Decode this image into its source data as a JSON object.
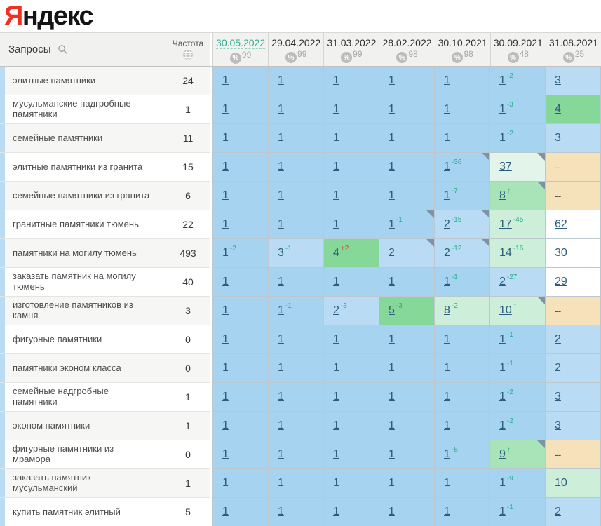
{
  "logo": {
    "part1": "Я",
    "part2": "ндекс"
  },
  "header": {
    "queries_label": "Запросы",
    "frequency_label": "Частота",
    "dates": [
      {
        "label": "30.05.2022",
        "pct": "99",
        "active": true
      },
      {
        "label": "29.04.2022",
        "pct": "99",
        "active": false
      },
      {
        "label": "31.03.2022",
        "pct": "99",
        "active": false
      },
      {
        "label": "28.02.2022",
        "pct": "98",
        "active": false
      },
      {
        "label": "30.10.2021",
        "pct": "98",
        "active": false
      },
      {
        "label": "30.09.2021",
        "pct": "48",
        "active": false
      },
      {
        "label": "31.08.2021",
        "pct": "25",
        "active": false
      }
    ]
  },
  "palette": {
    "b1": "#a6d3ef",
    "b2": "#b9dcf4",
    "g1": "#85d898",
    "g1b": "#a9e4b9",
    "g2": "#cdeed9",
    "g3": "#e3f5ea",
    "be": "#f5e2ba",
    "wh": "#ffffff",
    "accent_teal": "#2fae93",
    "delta_up": "#27ae8d",
    "delta_down": "#cc4633",
    "link": "#2c5d7c",
    "stripe": "#b9dcf2",
    "logo_red": "#ef3124"
  },
  "rows": [
    {
      "query": "элитные памятники",
      "freq": "24",
      "cells": [
        {
          "v": "1",
          "bg": "b1"
        },
        {
          "v": "1",
          "bg": "b1"
        },
        {
          "v": "1",
          "bg": "b1"
        },
        {
          "v": "1",
          "bg": "b1"
        },
        {
          "v": "1",
          "bg": "b1"
        },
        {
          "v": "1",
          "d": "-2",
          "bg": "b1"
        },
        {
          "v": "3",
          "bg": "b2"
        }
      ]
    },
    {
      "query": "мусульманские надгробные памятники",
      "freq": "1",
      "cells": [
        {
          "v": "1",
          "bg": "b1"
        },
        {
          "v": "1",
          "bg": "b1"
        },
        {
          "v": "1",
          "bg": "b1"
        },
        {
          "v": "1",
          "bg": "b1"
        },
        {
          "v": "1",
          "bg": "b1"
        },
        {
          "v": "1",
          "d": "-3",
          "bg": "b1"
        },
        {
          "v": "4",
          "bg": "g1"
        }
      ]
    },
    {
      "query": "семейные памятники",
      "freq": "11",
      "cells": [
        {
          "v": "1",
          "bg": "b1"
        },
        {
          "v": "1",
          "bg": "b1"
        },
        {
          "v": "1",
          "bg": "b1"
        },
        {
          "v": "1",
          "bg": "b1"
        },
        {
          "v": "1",
          "bg": "b1"
        },
        {
          "v": "1",
          "d": "-2",
          "bg": "b1"
        },
        {
          "v": "3",
          "bg": "b2"
        }
      ]
    },
    {
      "query": "элитные памятники из гранита",
      "freq": "15",
      "cells": [
        {
          "v": "1",
          "bg": "b1"
        },
        {
          "v": "1",
          "bg": "b1"
        },
        {
          "v": "1",
          "bg": "b1"
        },
        {
          "v": "1",
          "bg": "b1"
        },
        {
          "v": "1",
          "d": "-36",
          "bg": "b1",
          "c": true
        },
        {
          "v": "37",
          "d": "↑",
          "bg": "g3",
          "c": true
        },
        {
          "v": "--",
          "bg": "be"
        }
      ]
    },
    {
      "query": "семейные памятники из гранита",
      "freq": "6",
      "cells": [
        {
          "v": "1",
          "bg": "b1"
        },
        {
          "v": "1",
          "bg": "b1"
        },
        {
          "v": "1",
          "bg": "b1"
        },
        {
          "v": "1",
          "bg": "b1"
        },
        {
          "v": "1",
          "d": "-7",
          "bg": "b1"
        },
        {
          "v": "8",
          "d": "↑",
          "bg": "g1b",
          "c": true
        },
        {
          "v": "--",
          "bg": "be"
        }
      ]
    },
    {
      "query": "гранитные памятники тюмень",
      "freq": "22",
      "cells": [
        {
          "v": "1",
          "bg": "b1"
        },
        {
          "v": "1",
          "bg": "b1"
        },
        {
          "v": "1",
          "bg": "b1"
        },
        {
          "v": "1",
          "d": "-1",
          "bg": "b1",
          "c": true
        },
        {
          "v": "2",
          "d": "-15",
          "bg": "b2",
          "c": true
        },
        {
          "v": "17",
          "d": "-45",
          "bg": "g2"
        },
        {
          "v": "62",
          "bg": "wh"
        }
      ]
    },
    {
      "query": "памятники на могилу тюмень",
      "freq": "493",
      "cells": [
        {
          "v": "1",
          "d": "-2",
          "bg": "b1"
        },
        {
          "v": "3",
          "d": "-1",
          "bg": "b2"
        },
        {
          "v": "4",
          "d": "+2",
          "dc": "r",
          "bg": "g1"
        },
        {
          "v": "2",
          "bg": "b2",
          "c": true
        },
        {
          "v": "2",
          "d": "-12",
          "bg": "b2",
          "c": true
        },
        {
          "v": "14",
          "d": "-16",
          "bg": "g2"
        },
        {
          "v": "30",
          "bg": "wh"
        }
      ]
    },
    {
      "query": "заказать памятник на могилу тюмень",
      "freq": "40",
      "cells": [
        {
          "v": "1",
          "bg": "b1"
        },
        {
          "v": "1",
          "bg": "b1"
        },
        {
          "v": "1",
          "bg": "b1"
        },
        {
          "v": "1",
          "bg": "b1"
        },
        {
          "v": "1",
          "d": "-1",
          "bg": "b1"
        },
        {
          "v": "2",
          "d": "-27",
          "bg": "b2"
        },
        {
          "v": "29",
          "bg": "wh"
        }
      ]
    },
    {
      "query": "изготовление памятников из камня",
      "freq": "3",
      "cells": [
        {
          "v": "1",
          "bg": "b1"
        },
        {
          "v": "1",
          "d": "-1",
          "bg": "b1"
        },
        {
          "v": "2",
          "d": "-3",
          "bg": "b2"
        },
        {
          "v": "5",
          "d": "-3",
          "bg": "g1"
        },
        {
          "v": "8",
          "d": "-2",
          "bg": "g2"
        },
        {
          "v": "10",
          "d": "↑",
          "bg": "g2",
          "c": true
        },
        {
          "v": "--",
          "bg": "be"
        }
      ]
    },
    {
      "query": "фигурные памятники",
      "freq": "0",
      "cells": [
        {
          "v": "1",
          "bg": "b1"
        },
        {
          "v": "1",
          "bg": "b1"
        },
        {
          "v": "1",
          "bg": "b1"
        },
        {
          "v": "1",
          "bg": "b1"
        },
        {
          "v": "1",
          "bg": "b1"
        },
        {
          "v": "1",
          "d": "-1",
          "bg": "b1"
        },
        {
          "v": "2",
          "bg": "b2"
        }
      ]
    },
    {
      "query": "памятники эконом класса",
      "freq": "0",
      "cells": [
        {
          "v": "1",
          "bg": "b1"
        },
        {
          "v": "1",
          "bg": "b1"
        },
        {
          "v": "1",
          "bg": "b1"
        },
        {
          "v": "1",
          "bg": "b1"
        },
        {
          "v": "1",
          "bg": "b1"
        },
        {
          "v": "1",
          "d": "-1",
          "bg": "b1"
        },
        {
          "v": "2",
          "bg": "b2"
        }
      ]
    },
    {
      "query": "семейные надгробные памятники",
      "freq": "1",
      "cells": [
        {
          "v": "1",
          "bg": "b1"
        },
        {
          "v": "1",
          "bg": "b1"
        },
        {
          "v": "1",
          "bg": "b1"
        },
        {
          "v": "1",
          "bg": "b1"
        },
        {
          "v": "1",
          "bg": "b1"
        },
        {
          "v": "1",
          "d": "-2",
          "bg": "b1"
        },
        {
          "v": "3",
          "bg": "b2"
        }
      ]
    },
    {
      "query": "эконом памятники",
      "freq": "1",
      "cells": [
        {
          "v": "1",
          "bg": "b1"
        },
        {
          "v": "1",
          "bg": "b1"
        },
        {
          "v": "1",
          "bg": "b1"
        },
        {
          "v": "1",
          "bg": "b1"
        },
        {
          "v": "1",
          "bg": "b1"
        },
        {
          "v": "1",
          "d": "-2",
          "bg": "b1"
        },
        {
          "v": "3",
          "bg": "b2"
        }
      ]
    },
    {
      "query": "фигурные памятники из мрамора",
      "freq": "0",
      "cells": [
        {
          "v": "1",
          "bg": "b1"
        },
        {
          "v": "1",
          "bg": "b1"
        },
        {
          "v": "1",
          "bg": "b1"
        },
        {
          "v": "1",
          "bg": "b1"
        },
        {
          "v": "1",
          "d": "-8",
          "bg": "b1"
        },
        {
          "v": "9",
          "d": "↑",
          "bg": "g1b",
          "c": true
        },
        {
          "v": "--",
          "bg": "be"
        }
      ]
    },
    {
      "query": "заказать памятник мусульманский",
      "freq": "1",
      "cells": [
        {
          "v": "1",
          "bg": "b1"
        },
        {
          "v": "1",
          "bg": "b1"
        },
        {
          "v": "1",
          "bg": "b1"
        },
        {
          "v": "1",
          "bg": "b1"
        },
        {
          "v": "1",
          "bg": "b1"
        },
        {
          "v": "1",
          "d": "-9",
          "bg": "b1"
        },
        {
          "v": "10",
          "bg": "g2"
        }
      ]
    },
    {
      "query": "купить памятник элитный",
      "freq": "5",
      "cells": [
        {
          "v": "1",
          "bg": "b1"
        },
        {
          "v": "1",
          "bg": "b1"
        },
        {
          "v": "1",
          "bg": "b1"
        },
        {
          "v": "1",
          "bg": "b1"
        },
        {
          "v": "1",
          "bg": "b1"
        },
        {
          "v": "1",
          "d": "-1",
          "bg": "b1"
        },
        {
          "v": "2",
          "bg": "b2"
        }
      ]
    }
  ]
}
